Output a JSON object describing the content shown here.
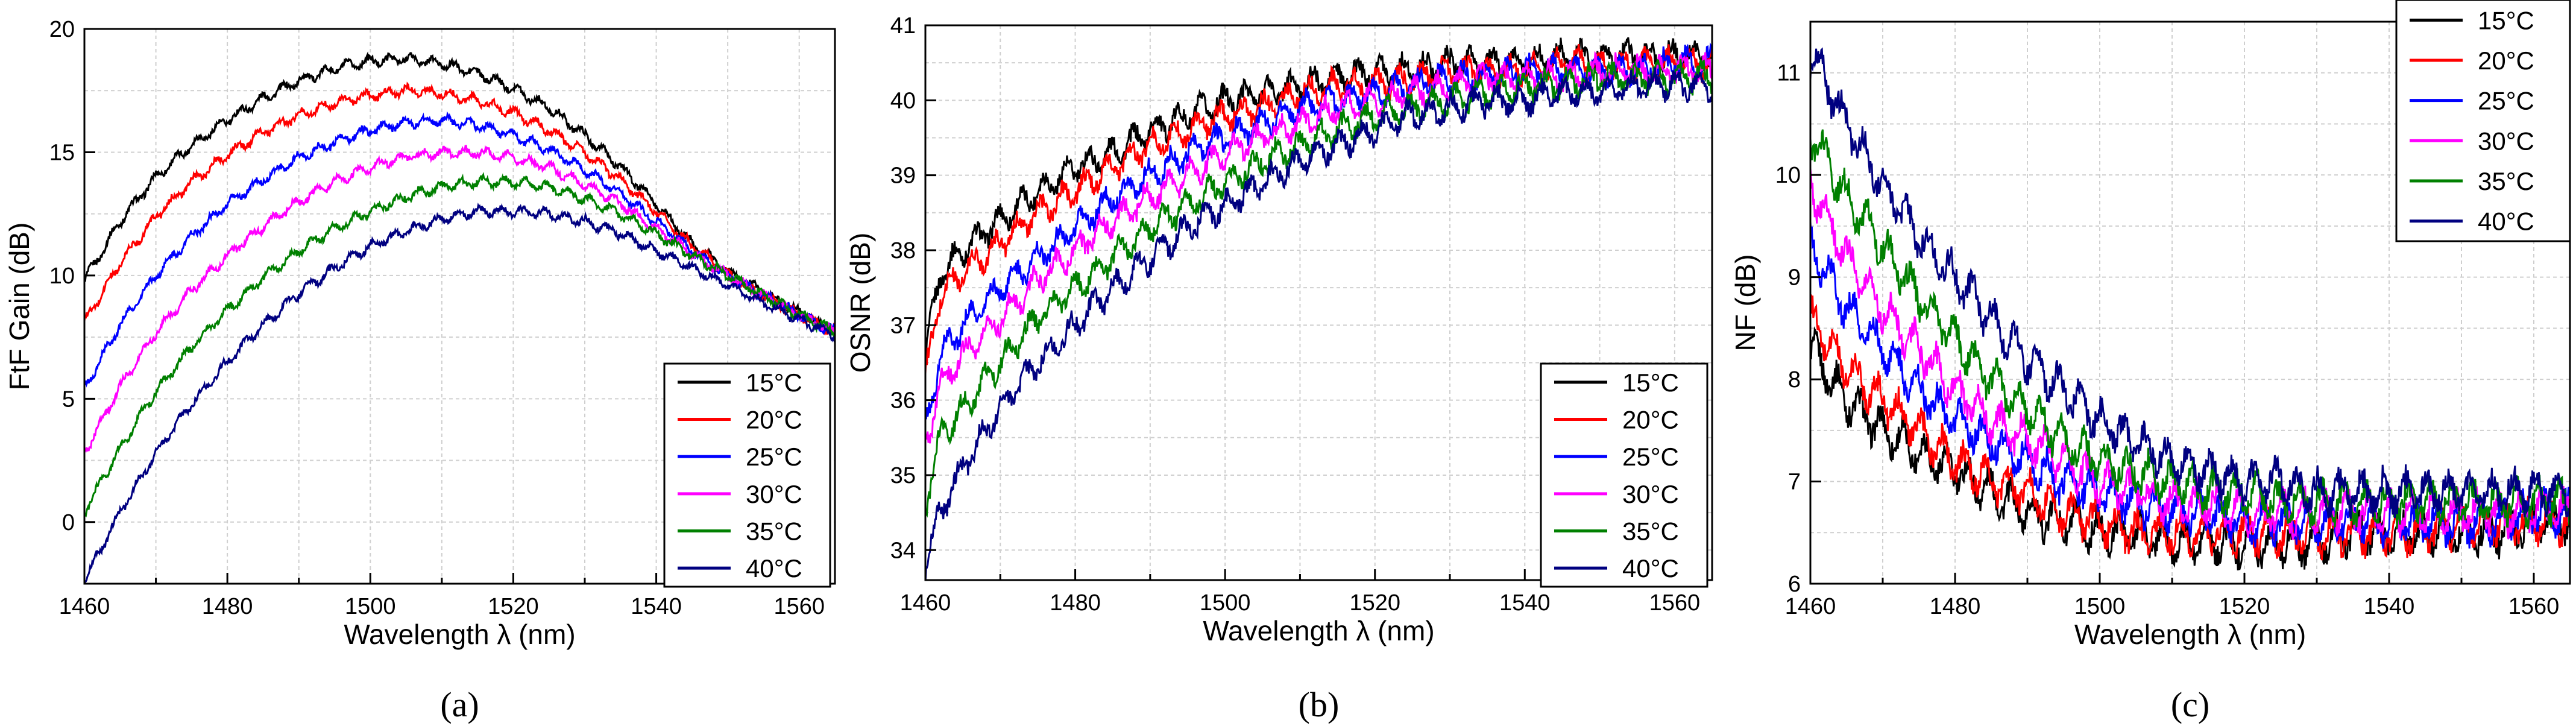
{
  "chart_data": [
    {
      "type": "line",
      "caption": "(a)",
      "xlabel": "Wavelength λ (nm)",
      "ylabel": "FtF Gain (dB)",
      "xlim": [
        1460,
        1565
      ],
      "ylim": [
        -2.5,
        20
      ],
      "xticks": [
        1460,
        1480,
        1500,
        1520,
        1540,
        1560
      ],
      "yticks": [
        0,
        5,
        10,
        15,
        20
      ],
      "grid": true,
      "legend": "bottom-right",
      "series": [
        {
          "name": "15°C",
          "color": "#000000",
          "x": [
            1460,
            1465,
            1470,
            1475,
            1480,
            1485,
            1490,
            1495,
            1500,
            1505,
            1510,
            1515,
            1520,
            1525,
            1530,
            1535,
            1540,
            1545,
            1550,
            1555,
            1560,
            1565
          ],
          "y": [
            9.8,
            12.2,
            14.0,
            15.3,
            16.3,
            17.2,
            17.9,
            18.4,
            18.7,
            18.8,
            18.6,
            18.2,
            17.6,
            16.8,
            15.7,
            14.4,
            12.9,
            11.3,
            10.2,
            9.3,
            8.5,
            7.7
          ]
        },
        {
          "name": "20°C",
          "color": "#ff0000",
          "x": [
            1460,
            1465,
            1470,
            1475,
            1480,
            1485,
            1490,
            1495,
            1500,
            1505,
            1510,
            1515,
            1520,
            1525,
            1530,
            1535,
            1540,
            1545,
            1550,
            1555,
            1560,
            1565
          ],
          "y": [
            8.1,
            10.5,
            12.4,
            13.8,
            14.9,
            15.8,
            16.5,
            17.0,
            17.3,
            17.5,
            17.4,
            17.1,
            16.6,
            15.9,
            15.0,
            13.9,
            12.6,
            11.2,
            10.1,
            9.2,
            8.4,
            7.7
          ]
        },
        {
          "name": "25°C",
          "color": "#0000ff",
          "x": [
            1460,
            1465,
            1470,
            1475,
            1480,
            1485,
            1490,
            1495,
            1500,
            1505,
            1510,
            1515,
            1520,
            1525,
            1530,
            1535,
            1540,
            1545,
            1550,
            1555,
            1560,
            1565
          ],
          "y": [
            5.4,
            8.0,
            10.0,
            11.6,
            12.9,
            13.9,
            14.8,
            15.4,
            15.9,
            16.2,
            16.3,
            16.1,
            15.7,
            15.1,
            14.3,
            13.3,
            12.2,
            11.0,
            10.0,
            9.2,
            8.4,
            7.7
          ]
        },
        {
          "name": "30°C",
          "color": "#ff00ff",
          "x": [
            1460,
            1465,
            1470,
            1475,
            1480,
            1485,
            1490,
            1495,
            1500,
            1505,
            1510,
            1515,
            1520,
            1525,
            1530,
            1535,
            1540,
            1545,
            1550,
            1555,
            1560,
            1565
          ],
          "y": [
            2.8,
            5.5,
            7.7,
            9.4,
            10.8,
            12.0,
            13.0,
            13.8,
            14.4,
            14.8,
            15.0,
            15.0,
            14.8,
            14.4,
            13.7,
            12.9,
            11.9,
            10.9,
            10.0,
            9.2,
            8.4,
            7.7
          ]
        },
        {
          "name": "35°C",
          "color": "#008000",
          "x": [
            1460,
            1465,
            1470,
            1475,
            1480,
            1485,
            1490,
            1495,
            1500,
            1505,
            1510,
            1515,
            1520,
            1525,
            1530,
            1535,
            1540,
            1545,
            1550,
            1555,
            1560,
            1565
          ],
          "y": [
            0.4,
            3.0,
            5.3,
            7.1,
            8.6,
            9.9,
            11.0,
            11.9,
            12.6,
            13.2,
            13.6,
            13.8,
            13.8,
            13.6,
            13.1,
            12.5,
            11.7,
            10.8,
            10.0,
            9.2,
            8.4,
            7.7
          ]
        },
        {
          "name": "40°C",
          "color": "#000080",
          "x": [
            1460,
            1465,
            1470,
            1475,
            1480,
            1485,
            1490,
            1495,
            1500,
            1505,
            1510,
            1515,
            1520,
            1525,
            1530,
            1535,
            1540,
            1545,
            1550,
            1555,
            1560,
            1565
          ],
          "y": [
            -2.4,
            0.4,
            2.8,
            4.8,
            6.5,
            8.0,
            9.3,
            10.3,
            11.2,
            11.8,
            12.3,
            12.6,
            12.6,
            12.5,
            12.2,
            11.7,
            11.0,
            10.3,
            9.6,
            8.9,
            8.2,
            7.6
          ]
        }
      ]
    },
    {
      "type": "line",
      "caption": "(b)",
      "xlabel": "Wavelength λ (nm)",
      "ylabel": "OSNR (dB)",
      "xlim": [
        1460,
        1565
      ],
      "ylim": [
        33.6,
        41
      ],
      "xticks": [
        1460,
        1480,
        1500,
        1520,
        1540,
        1560
      ],
      "yticks": [
        34,
        35,
        36,
        37,
        38,
        39,
        40,
        41
      ],
      "grid": true,
      "legend": "bottom-right",
      "series": [
        {
          "name": "15°C",
          "color": "#000000",
          "x": [
            1460,
            1462,
            1465,
            1470,
            1475,
            1480,
            1485,
            1490,
            1495,
            1500,
            1505,
            1510,
            1515,
            1520,
            1525,
            1530,
            1535,
            1540,
            1545,
            1550,
            1555,
            1560,
            1565
          ],
          "y": [
            36.6,
            37.7,
            38.0,
            38.4,
            38.8,
            39.1,
            39.3,
            39.6,
            39.8,
            40.0,
            40.1,
            40.2,
            40.3,
            40.4,
            40.4,
            40.5,
            40.5,
            40.5,
            40.6,
            40.6,
            40.6,
            40.6,
            40.6
          ]
        },
        {
          "name": "20°C",
          "color": "#ff0000",
          "x": [
            1460,
            1462,
            1465,
            1470,
            1475,
            1480,
            1485,
            1490,
            1495,
            1500,
            1505,
            1510,
            1515,
            1520,
            1525,
            1530,
            1535,
            1540,
            1545,
            1550,
            1555,
            1560,
            1565
          ],
          "y": [
            36.3,
            37.4,
            37.7,
            38.1,
            38.5,
            38.8,
            39.1,
            39.4,
            39.6,
            39.8,
            39.9,
            40.1,
            40.2,
            40.2,
            40.3,
            40.4,
            40.4,
            40.4,
            40.5,
            40.5,
            40.5,
            40.5,
            40.5
          ]
        },
        {
          "name": "25°C",
          "color": "#0000ff",
          "x": [
            1460,
            1462,
            1465,
            1470,
            1475,
            1480,
            1485,
            1490,
            1495,
            1500,
            1505,
            1510,
            1515,
            1520,
            1525,
            1530,
            1535,
            1540,
            1545,
            1550,
            1555,
            1560,
            1565
          ],
          "y": [
            35.6,
            36.6,
            37.0,
            37.5,
            37.9,
            38.3,
            38.7,
            39.0,
            39.3,
            39.5,
            39.7,
            39.9,
            40.0,
            40.1,
            40.2,
            40.3,
            40.3,
            40.4,
            40.4,
            40.4,
            40.4,
            40.5,
            40.5
          ]
        },
        {
          "name": "30°C",
          "color": "#ff00ff",
          "x": [
            1460,
            1462,
            1465,
            1470,
            1475,
            1480,
            1485,
            1490,
            1495,
            1500,
            1505,
            1510,
            1515,
            1520,
            1525,
            1530,
            1535,
            1540,
            1545,
            1550,
            1555,
            1560,
            1565
          ],
          "y": [
            35.4,
            36.2,
            36.6,
            37.1,
            37.6,
            38.0,
            38.4,
            38.7,
            39.0,
            39.3,
            39.5,
            39.7,
            39.9,
            40.0,
            40.1,
            40.2,
            40.3,
            40.3,
            40.3,
            40.4,
            40.4,
            40.4,
            40.4
          ]
        },
        {
          "name": "35°C",
          "color": "#008000",
          "x": [
            1460,
            1462,
            1465,
            1470,
            1475,
            1480,
            1485,
            1490,
            1495,
            1500,
            1505,
            1510,
            1515,
            1520,
            1525,
            1530,
            1535,
            1540,
            1545,
            1550,
            1555,
            1560,
            1565
          ],
          "y": [
            34.6,
            35.5,
            35.9,
            36.5,
            37.1,
            37.5,
            37.9,
            38.3,
            38.6,
            38.9,
            39.2,
            39.4,
            39.6,
            39.8,
            39.9,
            40.0,
            40.1,
            40.2,
            40.2,
            40.3,
            40.3,
            40.3,
            40.3
          ]
        },
        {
          "name": "40°C",
          "color": "#000080",
          "x": [
            1460,
            1462,
            1465,
            1470,
            1475,
            1480,
            1485,
            1490,
            1495,
            1500,
            1505,
            1510,
            1515,
            1520,
            1525,
            1530,
            1535,
            1540,
            1545,
            1550,
            1555,
            1560,
            1565
          ],
          "y": [
            33.8,
            34.5,
            35.1,
            35.9,
            36.5,
            37.0,
            37.5,
            37.9,
            38.3,
            38.6,
            38.9,
            39.2,
            39.4,
            39.6,
            39.8,
            39.9,
            40.0,
            40.0,
            40.1,
            40.1,
            40.2,
            40.2,
            40.2
          ]
        }
      ]
    },
    {
      "type": "line",
      "caption": "(c)",
      "xlabel": "Wavelength λ (nm)",
      "ylabel": "NF (dB)",
      "xlim": [
        1460,
        1565
      ],
      "ylim": [
        6,
        11.5
      ],
      "xticks": [
        1460,
        1480,
        1500,
        1520,
        1540,
        1560
      ],
      "yticks": [
        6,
        7,
        8,
        9,
        10,
        11
      ],
      "grid": true,
      "legend": "top-right",
      "series": [
        {
          "name": "15°C",
          "color": "#000000",
          "x": [
            1460,
            1465,
            1470,
            1475,
            1480,
            1485,
            1490,
            1495,
            1500,
            1505,
            1510,
            1515,
            1520,
            1525,
            1530,
            1535,
            1540,
            1545,
            1550,
            1555,
            1560,
            1565
          ],
          "y": [
            8.3,
            7.8,
            7.5,
            7.3,
            7.1,
            6.9,
            6.7,
            6.6,
            6.5,
            6.5,
            6.4,
            6.4,
            6.4,
            6.4,
            6.4,
            6.5,
            6.5,
            6.5,
            6.5,
            6.5,
            6.6,
            6.6
          ]
        },
        {
          "name": "20°C",
          "color": "#ff0000",
          "x": [
            1460,
            1465,
            1470,
            1475,
            1480,
            1485,
            1490,
            1495,
            1500,
            1505,
            1510,
            1515,
            1520,
            1525,
            1530,
            1535,
            1540,
            1545,
            1550,
            1555,
            1560,
            1565
          ],
          "y": [
            8.6,
            8.1,
            7.8,
            7.5,
            7.2,
            7.0,
            6.9,
            6.7,
            6.6,
            6.5,
            6.5,
            6.5,
            6.5,
            6.5,
            6.5,
            6.5,
            6.5,
            6.5,
            6.6,
            6.6,
            6.6,
            6.6
          ]
        },
        {
          "name": "25°C",
          "color": "#0000ff",
          "x": [
            1460,
            1465,
            1470,
            1475,
            1480,
            1485,
            1490,
            1495,
            1500,
            1505,
            1510,
            1515,
            1520,
            1525,
            1530,
            1535,
            1540,
            1545,
            1550,
            1555,
            1560,
            1565
          ],
          "y": [
            9.3,
            8.7,
            8.3,
            7.9,
            7.6,
            7.4,
            7.2,
            7.0,
            6.9,
            6.8,
            6.7,
            6.7,
            6.6,
            6.6,
            6.6,
            6.6,
            6.6,
            6.6,
            6.6,
            6.6,
            6.7,
            6.7
          ]
        },
        {
          "name": "30°C",
          "color": "#ff00ff",
          "x": [
            1460,
            1465,
            1470,
            1475,
            1480,
            1485,
            1490,
            1495,
            1500,
            1505,
            1510,
            1515,
            1520,
            1525,
            1530,
            1535,
            1540,
            1545,
            1550,
            1555,
            1560,
            1565
          ],
          "y": [
            9.9,
            9.2,
            8.7,
            8.3,
            7.9,
            7.6,
            7.4,
            7.2,
            7.0,
            6.9,
            6.8,
            6.8,
            6.7,
            6.7,
            6.7,
            6.7,
            6.7,
            6.7,
            6.7,
            6.7,
            6.7,
            6.7
          ]
        },
        {
          "name": "35°C",
          "color": "#008000",
          "x": [
            1460,
            1465,
            1470,
            1475,
            1480,
            1485,
            1490,
            1495,
            1500,
            1505,
            1510,
            1515,
            1520,
            1525,
            1530,
            1535,
            1540,
            1545,
            1550,
            1555,
            1560,
            1565
          ],
          "y": [
            10.4,
            9.8,
            9.3,
            8.8,
            8.4,
            8.0,
            7.7,
            7.4,
            7.2,
            7.1,
            7.0,
            6.9,
            6.9,
            6.8,
            6.8,
            6.8,
            6.8,
            6.8,
            6.8,
            6.8,
            6.8,
            6.8
          ]
        },
        {
          "name": "40°C",
          "color": "#000080",
          "x": [
            1460,
            1465,
            1470,
            1475,
            1480,
            1485,
            1490,
            1495,
            1500,
            1505,
            1510,
            1515,
            1520,
            1525,
            1530,
            1535,
            1540,
            1545,
            1550,
            1555,
            1560,
            1565
          ],
          "y": [
            11.2,
            10.5,
            9.9,
            9.4,
            9.0,
            8.6,
            8.2,
            7.9,
            7.6,
            7.4,
            7.2,
            7.1,
            7.0,
            7.0,
            6.9,
            6.9,
            6.9,
            6.9,
            6.9,
            6.9,
            6.9,
            6.9
          ]
        }
      ]
    }
  ]
}
